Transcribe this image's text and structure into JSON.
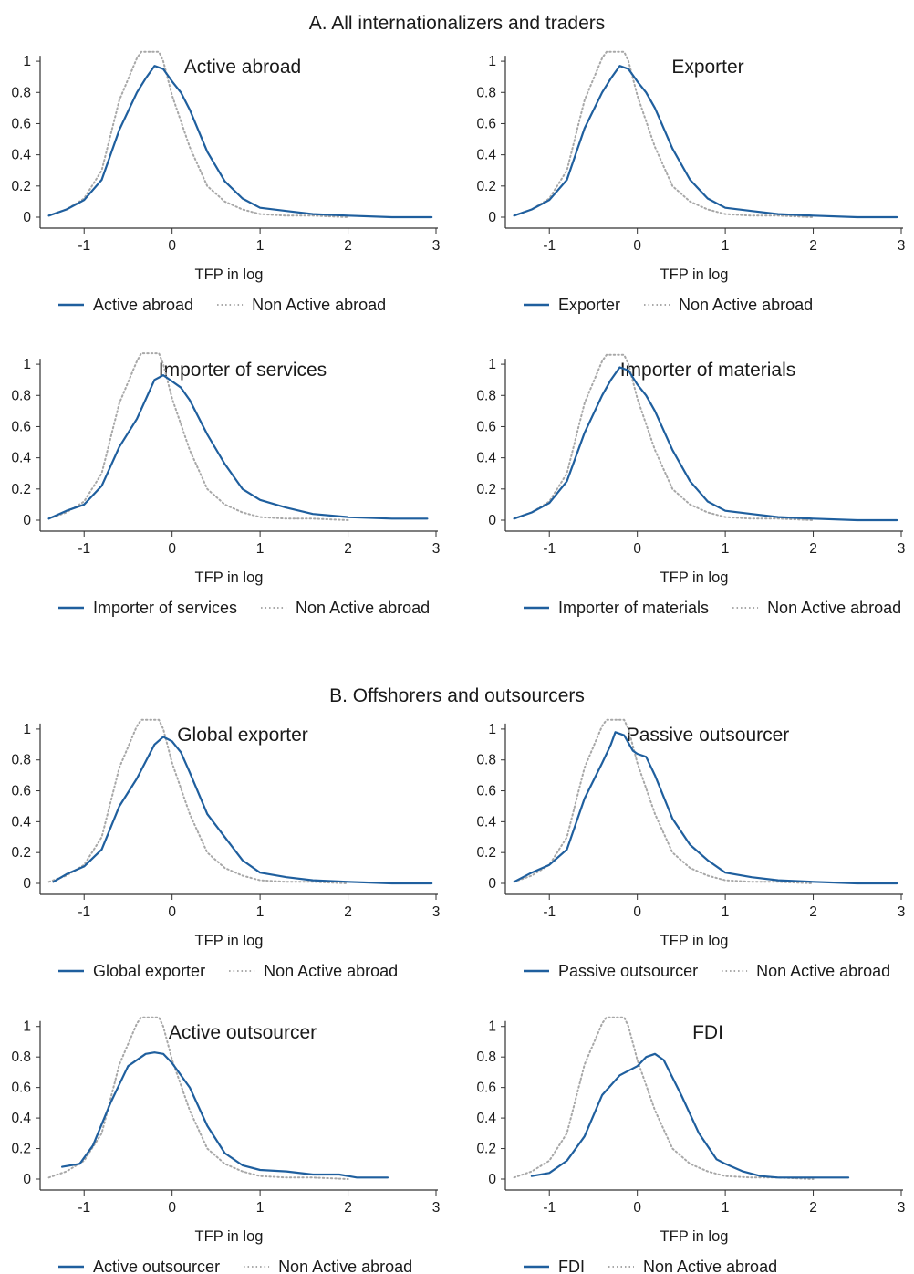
{
  "sections": [
    {
      "title": "A. All internationalizers and traders"
    },
    {
      "title": "B. Offshorers and outsourcers"
    }
  ],
  "colors": {
    "series": "#1f5f9e",
    "reference": "#a8a8a8",
    "axis": "#333333"
  },
  "chart_data": [
    {
      "type": "line",
      "section": 0,
      "title": "Active abroad",
      "xlabel": "TFP in log",
      "ylabel": "",
      "xlim": [
        -1.5,
        3
      ],
      "ylim": [
        0,
        1.1
      ],
      "xticks": [
        -1,
        0,
        1,
        2,
        3
      ],
      "yticks": [
        0,
        0.2,
        0.4,
        0.6,
        0.8,
        1
      ],
      "grid": false,
      "legend": "bottom",
      "series": [
        {
          "name": "Active abroad",
          "style": "solid",
          "x": [
            -1.4,
            -1.2,
            -1.0,
            -0.8,
            -0.6,
            -0.4,
            -0.3,
            -0.2,
            -0.1,
            0.0,
            0.1,
            0.2,
            0.4,
            0.6,
            0.8,
            1.0,
            1.3,
            1.6,
            2.0,
            2.5,
            2.95
          ],
          "y": [
            0.01,
            0.05,
            0.11,
            0.24,
            0.56,
            0.8,
            0.89,
            0.97,
            0.95,
            0.87,
            0.8,
            0.69,
            0.42,
            0.23,
            0.12,
            0.06,
            0.04,
            0.02,
            0.01,
            0.0,
            0.0
          ]
        },
        {
          "name": "Non Active abroad",
          "style": "dotted",
          "x": [
            -1.4,
            -1.2,
            -1.0,
            -0.8,
            -0.6,
            -0.4,
            -0.35,
            -0.25,
            -0.15,
            -0.1,
            0.0,
            0.2,
            0.4,
            0.6,
            0.8,
            1.0,
            1.3,
            1.6,
            2.0
          ],
          "y": [
            0.01,
            0.05,
            0.12,
            0.3,
            0.75,
            1.02,
            1.06,
            1.06,
            1.06,
            1.0,
            0.78,
            0.45,
            0.2,
            0.1,
            0.05,
            0.02,
            0.01,
            0.01,
            0.0
          ]
        }
      ]
    },
    {
      "type": "line",
      "section": 0,
      "title": "Exporter",
      "xlabel": "TFP in log",
      "ylabel": "",
      "xlim": [
        -1.5,
        3
      ],
      "ylim": [
        0,
        1.1
      ],
      "xticks": [
        -1,
        0,
        1,
        2,
        3
      ],
      "yticks": [
        0,
        0.2,
        0.4,
        0.6,
        0.8,
        1
      ],
      "grid": false,
      "legend": "bottom",
      "series": [
        {
          "name": "Exporter",
          "style": "solid",
          "x": [
            -1.4,
            -1.2,
            -1.0,
            -0.8,
            -0.6,
            -0.4,
            -0.3,
            -0.2,
            -0.1,
            0.0,
            0.1,
            0.2,
            0.4,
            0.6,
            0.8,
            1.0,
            1.3,
            1.6,
            2.0,
            2.5,
            2.95
          ],
          "y": [
            0.01,
            0.05,
            0.11,
            0.24,
            0.57,
            0.8,
            0.89,
            0.97,
            0.95,
            0.87,
            0.8,
            0.7,
            0.44,
            0.24,
            0.12,
            0.06,
            0.04,
            0.02,
            0.01,
            0.0,
            0.0
          ]
        },
        {
          "name": "Non Active abroad",
          "style": "dotted",
          "x": [
            -1.4,
            -1.2,
            -1.0,
            -0.8,
            -0.6,
            -0.4,
            -0.35,
            -0.25,
            -0.15,
            -0.1,
            0.0,
            0.2,
            0.4,
            0.6,
            0.8,
            1.0,
            1.3,
            1.6,
            2.0
          ],
          "y": [
            0.01,
            0.05,
            0.12,
            0.3,
            0.75,
            1.02,
            1.06,
            1.06,
            1.06,
            1.0,
            0.78,
            0.45,
            0.2,
            0.1,
            0.05,
            0.02,
            0.01,
            0.01,
            0.0
          ]
        }
      ]
    },
    {
      "type": "line",
      "section": 0,
      "title": "Importer of services",
      "xlabel": "TFP in log",
      "ylabel": "",
      "xlim": [
        -1.5,
        3
      ],
      "ylim": [
        0,
        1.1
      ],
      "xticks": [
        -1,
        0,
        1,
        2,
        3
      ],
      "yticks": [
        0,
        0.2,
        0.4,
        0.6,
        0.8,
        1
      ],
      "grid": false,
      "legend": "bottom",
      "series": [
        {
          "name": "Importer of services",
          "style": "solid",
          "x": [
            -1.4,
            -1.2,
            -1.0,
            -0.8,
            -0.6,
            -0.4,
            -0.2,
            -0.1,
            0.0,
            0.1,
            0.2,
            0.4,
            0.6,
            0.8,
            1.0,
            1.3,
            1.6,
            2.0,
            2.5,
            2.9
          ],
          "y": [
            0.01,
            0.06,
            0.1,
            0.22,
            0.47,
            0.65,
            0.9,
            0.93,
            0.89,
            0.85,
            0.77,
            0.55,
            0.36,
            0.2,
            0.13,
            0.08,
            0.04,
            0.02,
            0.01,
            0.01
          ]
        },
        {
          "name": "Non Active abroad",
          "style": "dotted",
          "x": [
            -1.4,
            -1.2,
            -1.0,
            -0.8,
            -0.6,
            -0.4,
            -0.35,
            -0.25,
            -0.15,
            -0.1,
            0.0,
            0.2,
            0.4,
            0.6,
            0.8,
            1.0,
            1.3,
            1.6,
            2.0
          ],
          "y": [
            0.01,
            0.05,
            0.12,
            0.3,
            0.75,
            1.02,
            1.07,
            1.07,
            1.07,
            1.0,
            0.78,
            0.45,
            0.2,
            0.1,
            0.05,
            0.02,
            0.01,
            0.01,
            0.0
          ]
        }
      ]
    },
    {
      "type": "line",
      "section": 0,
      "title": "Importer of materials",
      "xlabel": "TFP in log",
      "ylabel": "",
      "xlim": [
        -1.5,
        3
      ],
      "ylim": [
        0,
        1.1
      ],
      "xticks": [
        -1,
        0,
        1,
        2,
        3
      ],
      "yticks": [
        0,
        0.2,
        0.4,
        0.6,
        0.8,
        1
      ],
      "grid": false,
      "legend": "bottom",
      "series": [
        {
          "name": "Importer of materials",
          "style": "solid",
          "x": [
            -1.4,
            -1.2,
            -1.0,
            -0.8,
            -0.6,
            -0.4,
            -0.3,
            -0.2,
            -0.1,
            0.0,
            0.1,
            0.2,
            0.4,
            0.6,
            0.8,
            1.0,
            1.3,
            1.6,
            2.0,
            2.5,
            2.95
          ],
          "y": [
            0.01,
            0.05,
            0.11,
            0.25,
            0.56,
            0.8,
            0.9,
            0.98,
            0.96,
            0.87,
            0.8,
            0.7,
            0.45,
            0.25,
            0.12,
            0.06,
            0.04,
            0.02,
            0.01,
            0.0,
            0.0
          ]
        },
        {
          "name": "Non Active abroad",
          "style": "dotted",
          "x": [
            -1.4,
            -1.2,
            -1.0,
            -0.8,
            -0.6,
            -0.4,
            -0.35,
            -0.25,
            -0.15,
            -0.1,
            0.0,
            0.2,
            0.4,
            0.6,
            0.8,
            1.0,
            1.3,
            1.6,
            2.0
          ],
          "y": [
            0.01,
            0.05,
            0.12,
            0.3,
            0.75,
            1.02,
            1.06,
            1.06,
            1.06,
            1.0,
            0.78,
            0.45,
            0.2,
            0.1,
            0.05,
            0.02,
            0.01,
            0.01,
            0.0
          ]
        }
      ]
    },
    {
      "type": "line",
      "section": 1,
      "title": "Global exporter",
      "xlabel": "TFP in log",
      "ylabel": "",
      "xlim": [
        -1.5,
        3
      ],
      "ylim": [
        0,
        1.1
      ],
      "xticks": [
        -1,
        0,
        1,
        2,
        3
      ],
      "yticks": [
        0,
        0.2,
        0.4,
        0.6,
        0.8,
        1
      ],
      "grid": false,
      "legend": "bottom",
      "series": [
        {
          "name": "Global exporter",
          "style": "solid",
          "x": [
            -1.35,
            -1.2,
            -1.0,
            -0.8,
            -0.6,
            -0.4,
            -0.2,
            -0.1,
            0.0,
            0.1,
            0.2,
            0.4,
            0.6,
            0.8,
            1.0,
            1.3,
            1.6,
            2.0,
            2.5,
            2.95
          ],
          "y": [
            0.01,
            0.06,
            0.11,
            0.22,
            0.5,
            0.68,
            0.9,
            0.95,
            0.92,
            0.85,
            0.72,
            0.45,
            0.3,
            0.15,
            0.07,
            0.04,
            0.02,
            0.01,
            0.0,
            0.0
          ]
        },
        {
          "name": "Non Active abroad",
          "style": "dotted",
          "x": [
            -1.4,
            -1.2,
            -1.0,
            -0.8,
            -0.6,
            -0.4,
            -0.35,
            -0.25,
            -0.15,
            -0.1,
            0.0,
            0.2,
            0.4,
            0.6,
            0.8,
            1.0,
            1.3,
            1.6,
            2.0
          ],
          "y": [
            0.01,
            0.05,
            0.12,
            0.3,
            0.75,
            1.02,
            1.06,
            1.06,
            1.06,
            1.0,
            0.78,
            0.45,
            0.2,
            0.1,
            0.05,
            0.02,
            0.01,
            0.01,
            0.0
          ]
        }
      ]
    },
    {
      "type": "line",
      "section": 1,
      "title": "Passive outsourcer",
      "xlabel": "TFP in log",
      "ylabel": "",
      "xlim": [
        -1.5,
        3
      ],
      "ylim": [
        0,
        1.1
      ],
      "xticks": [
        -1,
        0,
        1,
        2,
        3
      ],
      "yticks": [
        0,
        0.2,
        0.4,
        0.6,
        0.8,
        1
      ],
      "grid": false,
      "legend": "bottom",
      "series": [
        {
          "name": "Passive outsourcer",
          "style": "solid",
          "x": [
            -1.4,
            -1.2,
            -1.0,
            -0.8,
            -0.6,
            -0.4,
            -0.3,
            -0.25,
            -0.15,
            -0.05,
            0.0,
            0.1,
            0.2,
            0.4,
            0.6,
            0.8,
            1.0,
            1.3,
            1.6,
            2.0,
            2.5,
            2.95
          ],
          "y": [
            0.01,
            0.07,
            0.12,
            0.22,
            0.55,
            0.78,
            0.9,
            0.98,
            0.96,
            0.86,
            0.84,
            0.82,
            0.7,
            0.42,
            0.25,
            0.15,
            0.07,
            0.04,
            0.02,
            0.01,
            0.0,
            0.0
          ]
        },
        {
          "name": "Non Active abroad",
          "style": "dotted",
          "x": [
            -1.4,
            -1.2,
            -1.0,
            -0.8,
            -0.6,
            -0.4,
            -0.35,
            -0.25,
            -0.15,
            -0.1,
            0.0,
            0.2,
            0.4,
            0.6,
            0.8,
            1.0,
            1.3,
            1.6,
            2.0
          ],
          "y": [
            0.01,
            0.05,
            0.12,
            0.3,
            0.75,
            1.02,
            1.06,
            1.06,
            1.06,
            1.0,
            0.78,
            0.45,
            0.2,
            0.1,
            0.05,
            0.02,
            0.01,
            0.01,
            0.0
          ]
        }
      ]
    },
    {
      "type": "line",
      "section": 1,
      "title": "Active outsourcer",
      "xlabel": "TFP in log",
      "ylabel": "",
      "xlim": [
        -1.5,
        3
      ],
      "ylim": [
        0,
        1.1
      ],
      "xticks": [
        -1,
        0,
        1,
        2,
        3
      ],
      "yticks": [
        0,
        0.2,
        0.4,
        0.6,
        0.8,
        1
      ],
      "grid": false,
      "legend": "bottom",
      "series": [
        {
          "name": "Active outsourcer",
          "style": "solid",
          "x": [
            -1.25,
            -1.05,
            -0.9,
            -0.7,
            -0.5,
            -0.3,
            -0.2,
            -0.1,
            0.0,
            0.2,
            0.4,
            0.6,
            0.8,
            1.0,
            1.3,
            1.6,
            1.9,
            2.1,
            2.45
          ],
          "y": [
            0.08,
            0.1,
            0.22,
            0.5,
            0.74,
            0.82,
            0.83,
            0.82,
            0.76,
            0.6,
            0.35,
            0.17,
            0.09,
            0.06,
            0.05,
            0.03,
            0.03,
            0.01,
            0.01
          ]
        },
        {
          "name": "Non Active abroad",
          "style": "dotted",
          "x": [
            -1.4,
            -1.2,
            -1.0,
            -0.8,
            -0.6,
            -0.4,
            -0.35,
            -0.25,
            -0.15,
            -0.1,
            0.0,
            0.2,
            0.4,
            0.6,
            0.8,
            1.0,
            1.3,
            1.6,
            2.0
          ],
          "y": [
            0.01,
            0.05,
            0.12,
            0.3,
            0.75,
            1.02,
            1.06,
            1.06,
            1.06,
            1.0,
            0.78,
            0.45,
            0.2,
            0.1,
            0.05,
            0.02,
            0.01,
            0.01,
            0.0
          ]
        }
      ]
    },
    {
      "type": "line",
      "section": 1,
      "title": "FDI",
      "xlabel": "TFP in log",
      "ylabel": "",
      "xlim": [
        -1.5,
        3
      ],
      "ylim": [
        0,
        1.1
      ],
      "xticks": [
        -1,
        0,
        1,
        2,
        3
      ],
      "yticks": [
        0,
        0.2,
        0.4,
        0.6,
        0.8,
        1
      ],
      "grid": false,
      "legend": "bottom",
      "series": [
        {
          "name": "FDI",
          "style": "solid",
          "x": [
            -1.2,
            -1.0,
            -0.8,
            -0.6,
            -0.4,
            -0.2,
            0.0,
            0.1,
            0.2,
            0.3,
            0.5,
            0.7,
            0.9,
            1.0,
            1.2,
            1.4,
            1.6,
            1.9,
            2.1,
            2.4
          ],
          "y": [
            0.02,
            0.04,
            0.12,
            0.28,
            0.55,
            0.68,
            0.74,
            0.8,
            0.82,
            0.78,
            0.55,
            0.3,
            0.13,
            0.1,
            0.05,
            0.02,
            0.01,
            0.01,
            0.01,
            0.01
          ]
        },
        {
          "name": "Non Active abroad",
          "style": "dotted",
          "x": [
            -1.4,
            -1.2,
            -1.0,
            -0.8,
            -0.6,
            -0.4,
            -0.35,
            -0.25,
            -0.15,
            -0.1,
            0.0,
            0.2,
            0.4,
            0.6,
            0.8,
            1.0,
            1.3,
            1.6,
            2.0
          ],
          "y": [
            0.01,
            0.05,
            0.12,
            0.3,
            0.75,
            1.02,
            1.06,
            1.06,
            1.06,
            1.0,
            0.78,
            0.45,
            0.2,
            0.1,
            0.05,
            0.02,
            0.01,
            0.01,
            0.0
          ]
        }
      ]
    }
  ]
}
